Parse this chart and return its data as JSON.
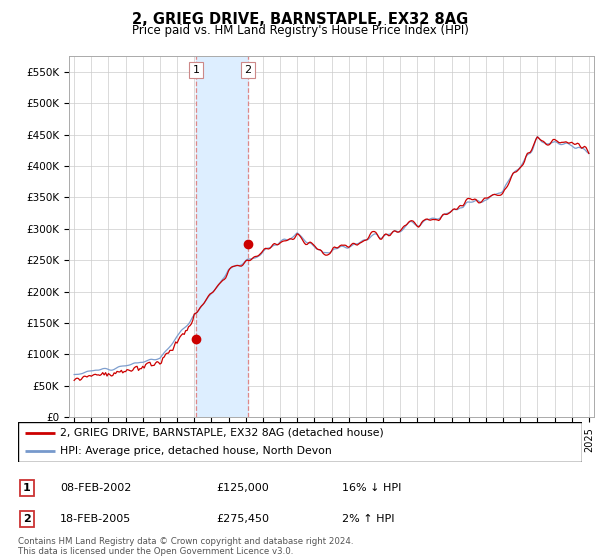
{
  "title": "2, GRIEG DRIVE, BARNSTAPLE, EX32 8AG",
  "subtitle": "Price paid vs. HM Land Registry's House Price Index (HPI)",
  "ylim": [
    0,
    575000
  ],
  "yticks": [
    0,
    50000,
    100000,
    150000,
    200000,
    250000,
    300000,
    350000,
    400000,
    450000,
    500000,
    550000
  ],
  "yticklabels": [
    "£0",
    "£50K",
    "£100K",
    "£150K",
    "£200K",
    "£250K",
    "£300K",
    "£350K",
    "£400K",
    "£450K",
    "£500K",
    "£550K"
  ],
  "hpi_color": "#7799cc",
  "price_color": "#cc0000",
  "marker_color": "#cc0000",
  "shade_color": "#ddeeff",
  "vline_color": "#dd8888",
  "t1": 2002.1,
  "t2": 2005.13,
  "p1": 125000,
  "p2": 275450,
  "xlim_start": 1994.7,
  "xlim_end": 2025.3,
  "legend_line1": "2, GRIEG DRIVE, BARNSTAPLE, EX32 8AG (detached house)",
  "legend_line2": "HPI: Average price, detached house, North Devon",
  "table_row1_label": "1",
  "table_row1_date": "08-FEB-2002",
  "table_row1_price": "£125,000",
  "table_row1_pct": "16% ↓ HPI",
  "table_row2_label": "2",
  "table_row2_date": "18-FEB-2005",
  "table_row2_price": "£275,450",
  "table_row2_pct": "2% ↑ HPI",
  "footnote": "Contains HM Land Registry data © Crown copyright and database right 2024.\nThis data is licensed under the Open Government Licence v3.0."
}
